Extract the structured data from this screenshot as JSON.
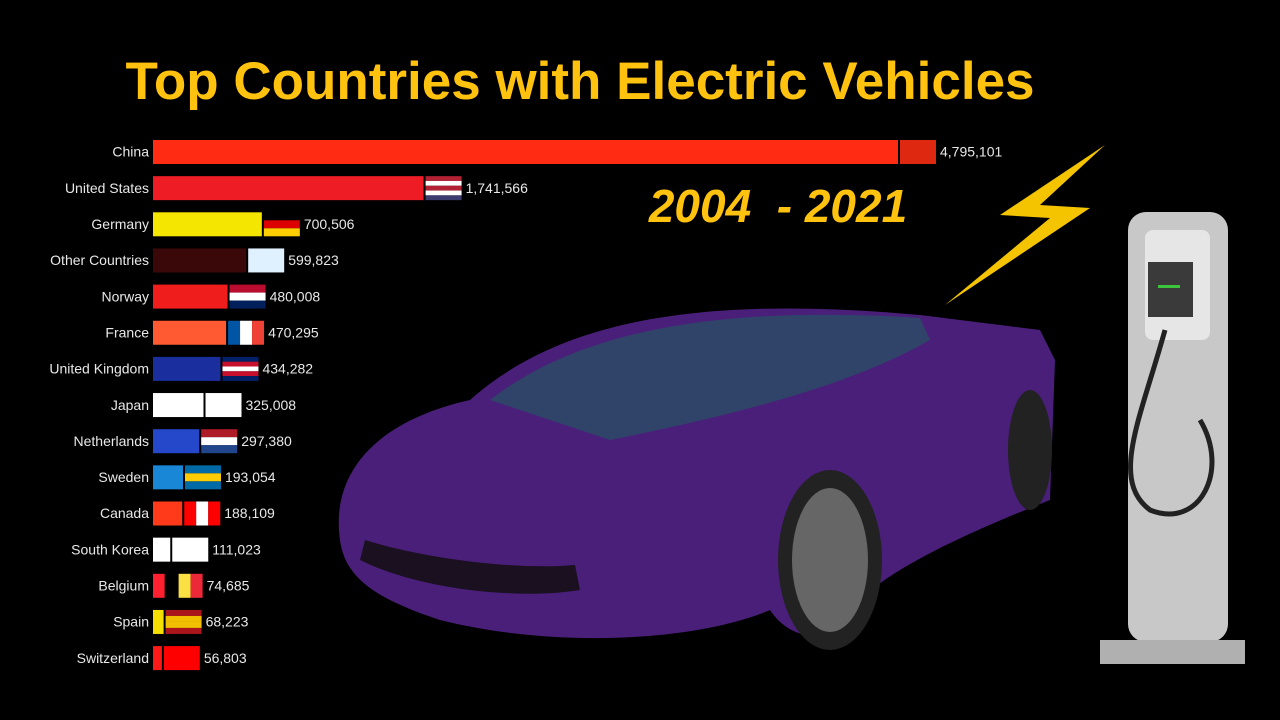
{
  "chart_data": {
    "type": "bar",
    "orientation": "horizontal",
    "title": "Top Countries with Electric Vehicles",
    "subtitle": "2004  - 2021",
    "categories": [
      "China",
      "United States",
      "Germany",
      "Other Countries",
      "Norway",
      "France",
      "United Kingdom",
      "Japan",
      "Netherlands",
      "Sweden",
      "Canada",
      "South Korea",
      "Belgium",
      "Spain",
      "Switzerland"
    ],
    "values": [
      4795101,
      1741566,
      700506,
      599823,
      480008,
      470295,
      434282,
      325008,
      297380,
      193054,
      188109,
      111023,
      74685,
      68223,
      56803
    ],
    "value_labels": [
      "4,795,101",
      "1,741,566",
      "700,506",
      "599,823",
      "480,008",
      "470,295",
      "434,282",
      "325,008",
      "297,380",
      "193,054",
      "188,109",
      "111,023",
      "74,685",
      "68,223",
      "56,803"
    ],
    "colors": [
      "#ff2b12",
      "#ee1c25",
      "#f5e600",
      "#3a0808",
      "#f01d1d",
      "#ff5a32",
      "#1b2e9e",
      "#ffffff",
      "#2547c9",
      "#1a86d6",
      "#ff3a1a",
      "#ffffff",
      "#ff2030",
      "#f5df00",
      "#ff1a1a"
    ]
  }
}
